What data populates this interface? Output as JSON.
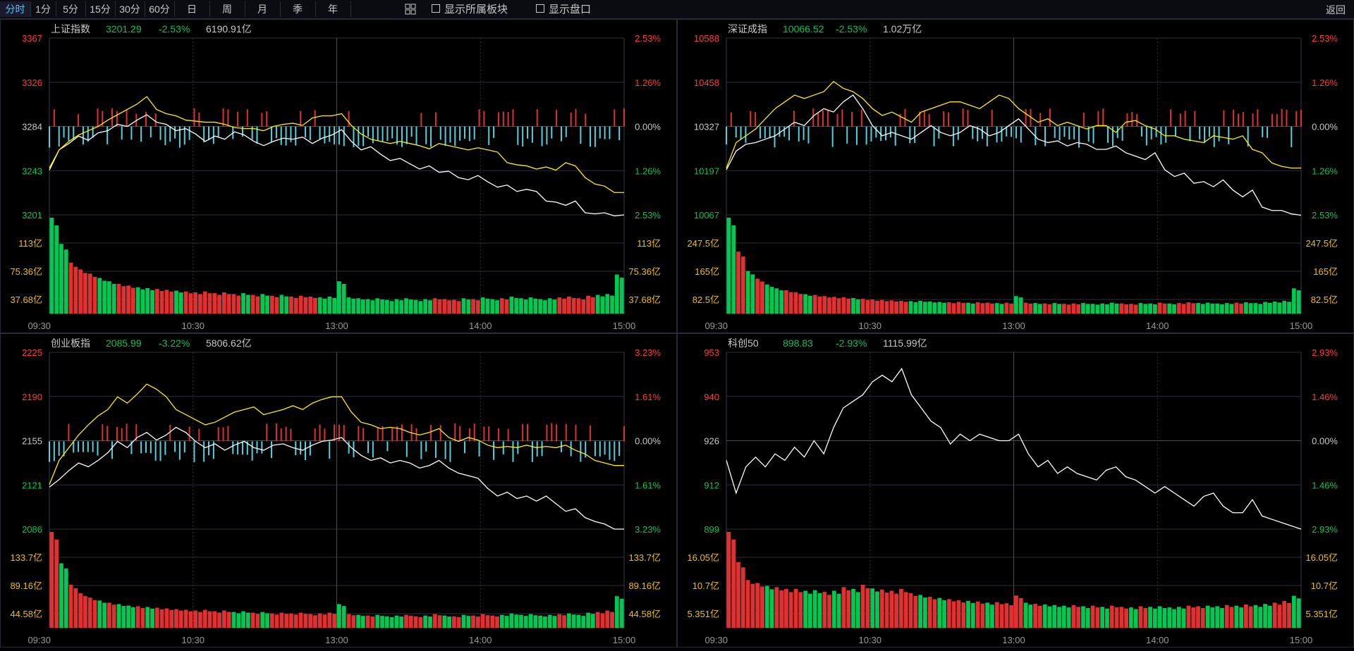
{
  "toolbar": {
    "periods": [
      "分时",
      "1分",
      "5分",
      "15分",
      "30分",
      "60分",
      "日",
      "周",
      "月",
      "季",
      "年"
    ],
    "active_period": "分时",
    "show_sector_label": "显示所属板块",
    "show_panel_label": "显示盘口",
    "back_label": "返回"
  },
  "colors": {
    "up": "#ff3b3b",
    "down": "#00c853",
    "neutral": "#c8c8c8",
    "vol_label": "#f0c000",
    "price_line": "#ffffff",
    "avg_line": "#ffee00",
    "bar_up": "#e03030",
    "bar_down": "#4fd1e0"
  },
  "chart_data": [
    {
      "type": "line",
      "title": "上证指数",
      "price": "3201.29",
      "change_pct": "-2.53%",
      "turnover": "6190.91亿",
      "price_ticks": [
        "3367",
        "3326",
        "3284",
        "3243",
        "3201"
      ],
      "pct_ticks": [
        "2.53%",
        "1.26%",
        "0.00%",
        "1.26%",
        "2.53%"
      ],
      "vol_ticks": [
        "113亿",
        "75.36亿",
        "37.68亿"
      ],
      "time_ticks": [
        "09:30",
        "10:30",
        "13:00",
        "14:00",
        "15:00"
      ],
      "ylim": [
        3201,
        3367
      ],
      "prev_close": 3284,
      "vol_max": 113,
      "price_series": [
        3243,
        3262,
        3268,
        3275,
        3271,
        3278,
        3280,
        3286,
        3284,
        3290,
        3295,
        3288,
        3286,
        3280,
        3282,
        3277,
        3270,
        3275,
        3272,
        3279,
        3276,
        3270,
        3266,
        3270,
        3273,
        3272,
        3274,
        3268,
        3273,
        3276,
        3281,
        3270,
        3262,
        3265,
        3258,
        3252,
        3254,
        3249,
        3244,
        3247,
        3241,
        3242,
        3236,
        3234,
        3238,
        3232,
        3227,
        3229,
        3223,
        3225,
        3223,
        3214,
        3213,
        3210,
        3214,
        3203,
        3202,
        3203,
        3200,
        3201
      ],
      "avg_series": [
        3245,
        3262,
        3270,
        3276,
        3280,
        3284,
        3290,
        3295,
        3300,
        3305,
        3312,
        3300,
        3296,
        3294,
        3290,
        3289,
        3288,
        3288,
        3286,
        3283,
        3282,
        3282,
        3280,
        3284,
        3286,
        3287,
        3285,
        3292,
        3294,
        3294,
        3296,
        3285,
        3277,
        3272,
        3270,
        3268,
        3270,
        3268,
        3266,
        3263,
        3268,
        3266,
        3264,
        3262,
        3264,
        3262,
        3260,
        3250,
        3248,
        3247,
        3244,
        3246,
        3243,
        3250,
        3247,
        3236,
        3230,
        3228,
        3222,
        3222
      ],
      "vol_series": [
        113,
        82,
        60,
        52,
        47,
        42,
        38,
        35,
        33,
        31,
        30,
        29,
        28,
        27,
        26,
        25,
        26,
        24,
        25,
        23,
        24,
        22,
        23,
        21,
        22,
        20,
        21,
        20,
        19,
        20,
        38,
        19,
        18,
        17,
        18,
        16,
        17,
        18,
        16,
        17,
        18,
        17,
        16,
        18,
        17,
        19,
        17,
        18,
        20,
        18,
        19,
        17,
        18,
        19,
        20,
        18,
        21,
        22,
        23,
        46
      ],
      "vol_labels": [
        "113亿",
        "75.36亿",
        "37.68亿"
      ],
      "vol_colors": []
    },
    {
      "type": "line",
      "title": "深证成指",
      "price": "10066.52",
      "change_pct": "-2.53%",
      "turnover": "1.02万亿",
      "price_ticks": [
        "10588",
        "10458",
        "10327",
        "10197",
        "10067"
      ],
      "pct_ticks": [
        "2.53%",
        "1.26%",
        "0.00%",
        "1.26%",
        "2.53%"
      ],
      "vol_ticks": [
        "247.5亿",
        "165亿",
        "82.5亿"
      ],
      "time_ticks": [
        "09:30",
        "10:30",
        "13:00",
        "14:00",
        "15:00"
      ],
      "ylim": [
        10067,
        10588
      ],
      "prev_close": 10327,
      "vol_max": 247.5,
      "price_series": [
        10200,
        10255,
        10275,
        10280,
        10290,
        10300,
        10320,
        10340,
        10330,
        10360,
        10380,
        10370,
        10400,
        10420,
        10380,
        10330,
        10300,
        10310,
        10300,
        10290,
        10310,
        10330,
        10310,
        10300,
        10310,
        10330,
        10320,
        10300,
        10310,
        10330,
        10350,
        10320,
        10290,
        10280,
        10285,
        10270,
        10280,
        10275,
        10260,
        10260,
        10270,
        10250,
        10240,
        10230,
        10250,
        10200,
        10180,
        10190,
        10160,
        10165,
        10150,
        10170,
        10140,
        10120,
        10140,
        10090,
        10080,
        10080,
        10070,
        10066
      ],
      "avg_series": [
        10205,
        10280,
        10300,
        10320,
        10350,
        10380,
        10400,
        10420,
        10410,
        10420,
        10430,
        10460,
        10440,
        10430,
        10410,
        10380,
        10360,
        10370,
        10355,
        10340,
        10370,
        10380,
        10390,
        10400,
        10400,
        10390,
        10380,
        10400,
        10420,
        10410,
        10380,
        10360,
        10340,
        10350,
        10330,
        10340,
        10330,
        10320,
        10330,
        10330,
        10310,
        10340,
        10345,
        10330,
        10320,
        10300,
        10300,
        10290,
        10285,
        10280,
        10300,
        10295,
        10290,
        10300,
        10260,
        10250,
        10220,
        10210,
        10205,
        10205
      ],
      "vol_series": [
        247.5,
        160,
        110,
        90,
        75,
        65,
        60,
        55,
        50,
        48,
        45,
        43,
        42,
        40,
        38,
        36,
        35,
        34,
        33,
        32,
        33,
        31,
        30,
        29,
        30,
        28,
        29,
        28,
        27,
        28,
        45,
        28,
        27,
        26,
        27,
        25,
        26,
        27,
        25,
        26,
        28,
        26,
        25,
        27,
        26,
        28,
        26,
        27,
        29,
        27,
        28,
        26,
        27,
        28,
        29,
        27,
        30,
        31,
        33,
        65
      ],
      "vol_colors": []
    },
    {
      "type": "line",
      "title": "创业板指",
      "price": "2085.99",
      "change_pct": "-3.22%",
      "turnover": "5806.62亿",
      "price_ticks": [
        "2225",
        "2190",
        "2155",
        "2121",
        "2086"
      ],
      "pct_ticks": [
        "3.23%",
        "1.61%",
        "0.00%",
        "1.61%",
        "3.23%"
      ],
      "vol_ticks": [
        "133.7亿",
        "89.16亿",
        "44.58亿"
      ],
      "time_ticks": [
        "09:30",
        "10:30",
        "13:00",
        "14:00",
        "15:00"
      ],
      "ylim": [
        2086,
        2225
      ],
      "prev_close": 2155,
      "vol_max": 133.7,
      "price_series": [
        2119,
        2125,
        2132,
        2138,
        2135,
        2140,
        2146,
        2155,
        2150,
        2158,
        2162,
        2156,
        2160,
        2166,
        2162,
        2155,
        2150,
        2153,
        2148,
        2152,
        2155,
        2150,
        2148,
        2152,
        2153,
        2150,
        2148,
        2152,
        2155,
        2156,
        2158,
        2150,
        2144,
        2140,
        2142,
        2138,
        2140,
        2138,
        2134,
        2136,
        2140,
        2134,
        2130,
        2128,
        2126,
        2118,
        2112,
        2115,
        2110,
        2112,
        2108,
        2112,
        2106,
        2100,
        2102,
        2095,
        2092,
        2090,
        2086,
        2086
      ],
      "avg_series": [
        2121,
        2140,
        2150,
        2160,
        2168,
        2175,
        2180,
        2190,
        2185,
        2192,
        2200,
        2196,
        2190,
        2180,
        2176,
        2172,
        2168,
        2170,
        2174,
        2178,
        2180,
        2182,
        2176,
        2178,
        2180,
        2183,
        2180,
        2185,
        2188,
        2190,
        2190,
        2178,
        2170,
        2168,
        2165,
        2166,
        2165,
        2162,
        2160,
        2162,
        2165,
        2158,
        2155,
        2158,
        2156,
        2152,
        2150,
        2151,
        2150,
        2152,
        2150,
        2151,
        2150,
        2152,
        2148,
        2145,
        2140,
        2138,
        2136,
        2136
      ],
      "vol_series": [
        133.7,
        90,
        60,
        48,
        42,
        38,
        35,
        33,
        31,
        30,
        29,
        28,
        27,
        26,
        25,
        24,
        25,
        23,
        24,
        22,
        23,
        21,
        22,
        20,
        21,
        20,
        21,
        19,
        20,
        21,
        33,
        19,
        18,
        17,
        18,
        16,
        17,
        18,
        16,
        17,
        19,
        17,
        16,
        18,
        17,
        19,
        17,
        18,
        20,
        18,
        19,
        17,
        18,
        19,
        20,
        18,
        21,
        22,
        24,
        44
      ],
      "vol_colors": []
    },
    {
      "type": "line",
      "title": "科创50",
      "price": "898.83",
      "change_pct": "-2.93%",
      "turnover": "1115.99亿",
      "price_ticks": [
        "953",
        "940",
        "926",
        "912",
        "899"
      ],
      "pct_ticks": [
        "2.93%",
        "1.46%",
        "0.00%",
        "1.46%",
        "2.93%"
      ],
      "vol_ticks": [
        "16.05亿",
        "10.7亿",
        "5.351亿"
      ],
      "time_ticks": [
        "09:30",
        "10:30",
        "13:00",
        "14:00",
        "15:00"
      ],
      "ylim": [
        899,
        953
      ],
      "prev_close": 926,
      "vol_max": 16.05,
      "price_series": [
        920,
        910,
        918,
        921,
        918,
        922,
        920,
        924,
        921,
        926,
        922,
        930,
        936,
        938,
        940,
        944,
        946,
        944,
        948,
        940,
        936,
        932,
        930,
        925,
        928,
        926,
        928,
        927,
        926,
        926,
        928,
        922,
        918,
        920,
        916,
        918,
        916,
        915,
        914,
        917,
        918,
        915,
        914,
        912,
        910,
        912,
        910,
        908,
        906,
        909,
        910,
        906,
        904,
        904,
        908,
        903,
        902,
        901,
        900,
        899
      ],
      "avg_series": [],
      "vol_series": [
        16.05,
        11,
        8,
        7.5,
        7,
        6.8,
        6.5,
        6.5,
        6.2,
        6.3,
        6,
        6.2,
        6.8,
        6.5,
        7.2,
        6.6,
        6.4,
        6.2,
        6.5,
        5.8,
        5.5,
        5.2,
        5,
        4.8,
        4.6,
        4.5,
        4.4,
        4.2,
        4.3,
        4.1,
        5.4,
        4.2,
        4,
        3.9,
        3.8,
        3.7,
        3.8,
        3.6,
        3.7,
        3.5,
        3.7,
        3.5,
        3.4,
        3.6,
        3.5,
        3.6,
        3.4,
        3.5,
        3.7,
        3.6,
        3.7,
        3.6,
        3.8,
        3.7,
        3.9,
        3.8,
        4,
        4.2,
        4.5,
        5.35
      ],
      "vol_colors": []
    }
  ]
}
